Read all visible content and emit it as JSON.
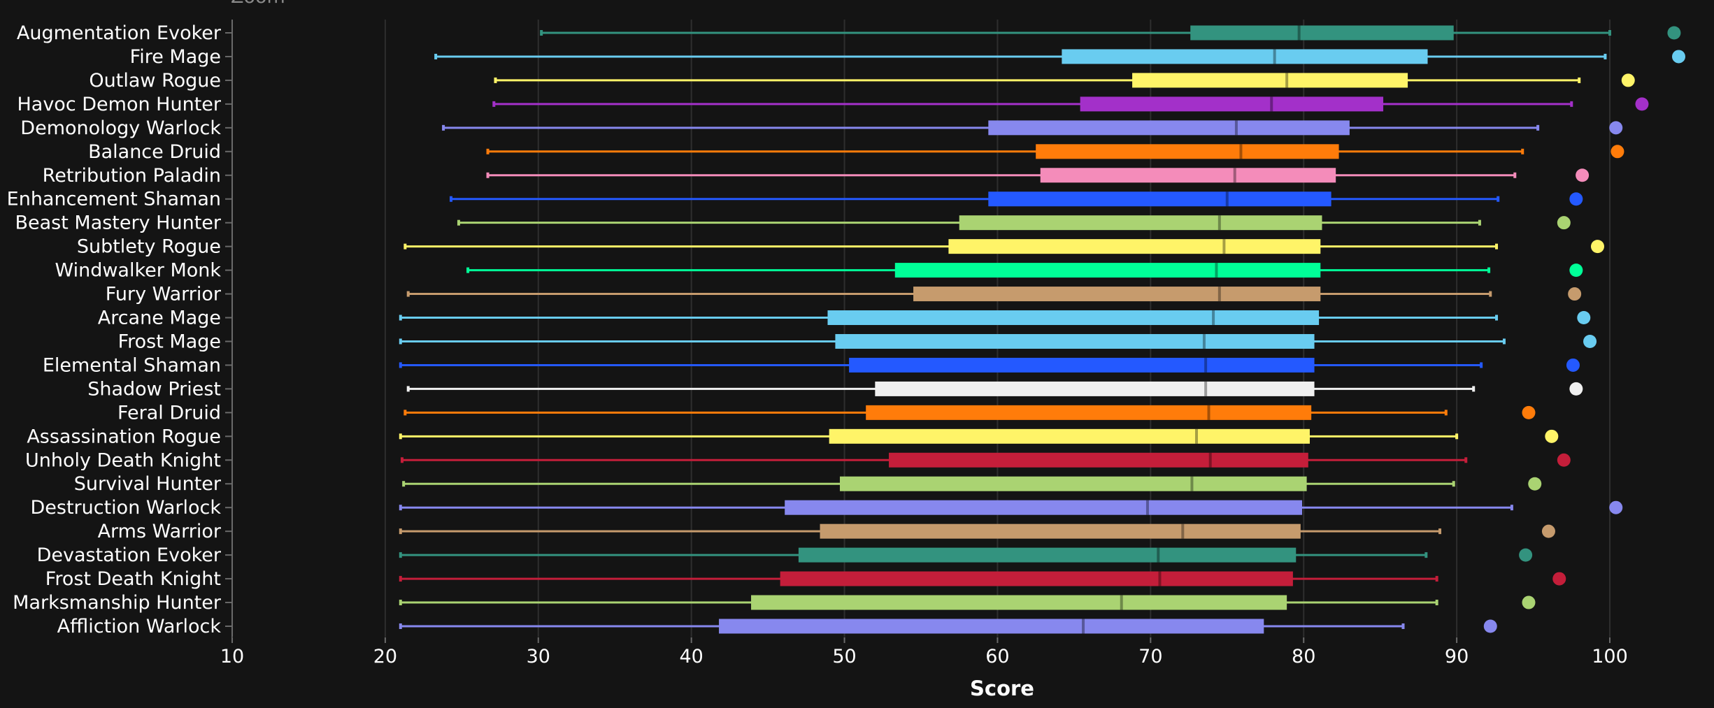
{
  "zoom_label": "Zoom",
  "chart_data": {
    "type": "boxplot",
    "xlabel": "Score",
    "xlim": [
      10,
      105
    ],
    "xticks": [
      10,
      20,
      30,
      40,
      50,
      60,
      70,
      80,
      90,
      100
    ],
    "grid": true,
    "colors": {
      "background": "#141414",
      "grid": "#2e2e2e"
    },
    "series": [
      {
        "name": "Augmentation Evoker",
        "color": "#33937F",
        "min": 30.2,
        "q1": 72.6,
        "median": 79.7,
        "q3": 89.8,
        "max": 100.0,
        "outlier": 104.2
      },
      {
        "name": "Fire Mage",
        "color": "#69CCF0",
        "min": 23.3,
        "q1": 64.2,
        "median": 78.1,
        "q3": 88.1,
        "max": 99.7,
        "outlier": 104.5
      },
      {
        "name": "Outlaw Rogue",
        "color": "#FFF468",
        "min": 27.2,
        "q1": 68.8,
        "median": 78.9,
        "q3": 86.8,
        "max": 98.0,
        "outlier": 101.2
      },
      {
        "name": "Havoc Demon Hunter",
        "color": "#A330C9",
        "min": 27.1,
        "q1": 65.4,
        "median": 77.9,
        "q3": 85.2,
        "max": 97.5,
        "outlier": 102.1
      },
      {
        "name": "Demonology Warlock",
        "color": "#8788EE",
        "min": 23.8,
        "q1": 59.4,
        "median": 75.6,
        "q3": 83.0,
        "max": 95.3,
        "outlier": 100.4
      },
      {
        "name": "Balance Druid",
        "color": "#FF7C0A",
        "min": 26.7,
        "q1": 62.5,
        "median": 75.9,
        "q3": 82.3,
        "max": 94.3,
        "outlier": 100.5
      },
      {
        "name": "Retribution Paladin",
        "color": "#F48CBA",
        "min": 26.7,
        "q1": 62.8,
        "median": 75.5,
        "q3": 82.1,
        "max": 93.8,
        "outlier": 98.2
      },
      {
        "name": "Enhancement Shaman",
        "color": "#2459FF",
        "min": 24.3,
        "q1": 59.4,
        "median": 75.0,
        "q3": 81.8,
        "max": 92.7,
        "outlier": 97.8
      },
      {
        "name": "Beast Mastery Hunter",
        "color": "#AAD372",
        "min": 24.8,
        "q1": 57.5,
        "median": 74.5,
        "q3": 81.2,
        "max": 91.5,
        "outlier": 97.0
      },
      {
        "name": "Subtlety Rogue",
        "color": "#FFF468",
        "min": 21.3,
        "q1": 56.8,
        "median": 74.8,
        "q3": 81.1,
        "max": 92.6,
        "outlier": 99.2
      },
      {
        "name": "Windwalker Monk",
        "color": "#00FF98",
        "min": 25.4,
        "q1": 53.3,
        "median": 74.3,
        "q3": 81.1,
        "max": 92.1,
        "outlier": 97.8
      },
      {
        "name": "Fury Warrior",
        "color": "#C69B6D",
        "min": 21.5,
        "q1": 54.5,
        "median": 74.5,
        "q3": 81.1,
        "max": 92.2,
        "outlier": 97.7
      },
      {
        "name": "Arcane Mage",
        "color": "#69CCF0",
        "min": 21.0,
        "q1": 48.9,
        "median": 74.1,
        "q3": 81.0,
        "max": 92.6,
        "outlier": 98.3
      },
      {
        "name": "Frost Mage",
        "color": "#69CCF0",
        "min": 21.0,
        "q1": 49.4,
        "median": 73.5,
        "q3": 80.7,
        "max": 93.1,
        "outlier": 98.7
      },
      {
        "name": "Elemental Shaman",
        "color": "#2459FF",
        "min": 21.0,
        "q1": 50.3,
        "median": 73.6,
        "q3": 80.7,
        "max": 91.6,
        "outlier": 97.6
      },
      {
        "name": "Shadow Priest",
        "color": "#F0F0F0",
        "min": 21.5,
        "q1": 52.0,
        "median": 73.6,
        "q3": 80.7,
        "max": 91.1,
        "outlier": 97.8
      },
      {
        "name": "Feral Druid",
        "color": "#FF7C0A",
        "min": 21.3,
        "q1": 51.4,
        "median": 73.8,
        "q3": 80.5,
        "max": 89.3,
        "outlier": 94.7
      },
      {
        "name": "Assassination Rogue",
        "color": "#FFF468",
        "min": 21.0,
        "q1": 49.0,
        "median": 73.0,
        "q3": 80.4,
        "max": 90.0,
        "outlier": 96.2
      },
      {
        "name": "Unholy Death Knight",
        "color": "#C41E3A",
        "min": 21.1,
        "q1": 52.9,
        "median": 73.9,
        "q3": 80.3,
        "max": 90.6,
        "outlier": 97.0
      },
      {
        "name": "Survival Hunter",
        "color": "#AAD372",
        "min": 21.2,
        "q1": 49.7,
        "median": 72.7,
        "q3": 80.2,
        "max": 89.8,
        "outlier": 95.1
      },
      {
        "name": "Destruction Warlock",
        "color": "#8788EE",
        "min": 21.0,
        "q1": 46.1,
        "median": 69.8,
        "q3": 79.9,
        "max": 93.6,
        "outlier": 100.4
      },
      {
        "name": "Arms Warrior",
        "color": "#C69B6D",
        "min": 21.0,
        "q1": 48.4,
        "median": 72.1,
        "q3": 79.8,
        "max": 88.9,
        "outlier": 96.0
      },
      {
        "name": "Devastation Evoker",
        "color": "#33937F",
        "min": 21.0,
        "q1": 47.0,
        "median": 70.5,
        "q3": 79.5,
        "max": 88.0,
        "outlier": 94.5
      },
      {
        "name": "Frost Death Knight",
        "color": "#C41E3A",
        "min": 21.0,
        "q1": 45.8,
        "median": 70.6,
        "q3": 79.3,
        "max": 88.7,
        "outlier": 96.7
      },
      {
        "name": "Marksmanship Hunter",
        "color": "#AAD372",
        "min": 21.0,
        "q1": 43.9,
        "median": 68.1,
        "q3": 78.9,
        "max": 88.7,
        "outlier": 94.7
      },
      {
        "name": "Affliction Warlock",
        "color": "#8788EE",
        "min": 21.0,
        "q1": 41.8,
        "median": 65.6,
        "q3": 77.4,
        "max": 86.5,
        "outlier": 92.2
      }
    ]
  }
}
